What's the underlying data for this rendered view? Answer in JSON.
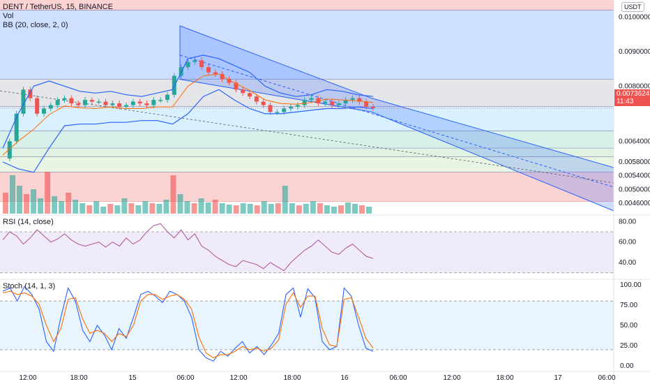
{
  "header": {
    "title": "DENT / TetherUS, 15, BINANCE",
    "vol_label": "Vol",
    "bb_label": "BB (20, close, 2, 0)",
    "unit": "USDT"
  },
  "price_tag": {
    "value": "0.0073624",
    "countdown": "11:43",
    "color": "#ef5350"
  },
  "rsi_label": "RSI (14, close)",
  "stoch_label": "Stoch (14, 1, 3)",
  "colors": {
    "up": "#26a69a",
    "down": "#ef5350",
    "bb": "#2962ff",
    "ma": "#ff6d00",
    "rsi": "#b05ca1",
    "stoch_k": "#2962ff",
    "stoch_d": "#ff6d00"
  },
  "chart_data": [
    {
      "type": "candlestick",
      "name": "price",
      "ylim": [
        0.0043,
        0.0105
      ],
      "y_ticks": [
        "0.0100000",
        "0.0090000",
        "0.0080000",
        "0.0064000",
        "0.0058000",
        "0.0054000",
        "0.0050000",
        "0.0046000"
      ],
      "y_tick_values": [
        0.01,
        0.009,
        0.008,
        0.0064,
        0.0058,
        0.0054,
        0.005,
        0.0046
      ],
      "last_price": 0.0073624,
      "x_ticks": [
        "12:00",
        "18:00",
        "15",
        "06:00",
        "12:00",
        "18:00",
        "16",
        "06:00",
        "12:00",
        "18:00",
        "17",
        "06:00"
      ],
      "fib_levels": [
        0.0102,
        0.0082,
        0.0074,
        0.0067,
        0.0062,
        0.00595,
        0.0055,
        0.00465
      ],
      "zone_colors": [
        "#fcd3d3",
        "#cfe0ff",
        "#e4e6ea",
        "#d9f0ff",
        "#d7f0ea",
        "#dff2e3",
        "#e9f5e4",
        "#fbd3d3"
      ],
      "price_path": [
        0.0059,
        0.0064,
        0.0072,
        0.0079,
        0.00765,
        0.0072,
        0.00735,
        0.00745,
        0.0076,
        0.00765,
        0.0075,
        0.00745,
        0.0076,
        0.00755,
        0.00755,
        0.00745,
        0.0075,
        0.0074,
        0.00745,
        0.00755,
        0.0075,
        0.00745,
        0.0076,
        0.0076,
        0.00775,
        0.0083,
        0.00855,
        0.0087,
        0.00875,
        0.00855,
        0.0084,
        0.00835,
        0.0082,
        0.0081,
        0.0079,
        0.0078,
        0.0077,
        0.00755,
        0.00745,
        0.00725,
        0.00725,
        0.00735,
        0.0074,
        0.00745,
        0.0076,
        0.00765,
        0.0075,
        0.00755,
        0.00745,
        0.0075,
        0.0076,
        0.00765,
        0.00755,
        0.0074,
        0.007362
      ],
      "bb_upper_path": [
        0.0062,
        0.0072,
        0.008,
        0.00815,
        0.008,
        0.00785,
        0.0078,
        0.00785,
        0.00775,
        0.0077,
        0.0078,
        0.0079,
        0.0088,
        0.0089,
        0.0088,
        0.0086,
        0.0084,
        0.008,
        0.0078,
        0.0077,
        0.00775,
        0.0079,
        0.00785,
        0.00775,
        0.0077
      ],
      "bb_lower_path": [
        0.0058,
        0.0056,
        0.0055,
        0.0062,
        0.00685,
        0.0069,
        0.0069,
        0.00695,
        0.00695,
        0.007,
        0.007,
        0.0069,
        0.0072,
        0.0077,
        0.0079,
        0.0076,
        0.00735,
        0.0072,
        0.0072,
        0.00725,
        0.0073,
        0.00735,
        0.00735,
        0.0074,
        0.00735
      ],
      "volume_path": [
        30,
        55,
        40,
        28,
        35,
        22,
        60,
        25,
        18,
        30,
        20,
        15,
        12,
        18,
        10,
        14,
        12,
        22,
        15,
        12,
        18,
        15,
        14,
        20,
        55,
        28,
        18,
        15,
        22,
        16,
        20,
        15,
        13,
        12,
        15,
        14,
        12,
        18,
        14,
        15,
        40,
        15,
        12,
        14,
        18,
        15,
        12,
        10,
        12,
        16,
        14,
        12,
        10
      ]
    },
    {
      "type": "line",
      "name": "RSI",
      "ylim": [
        25,
        85
      ],
      "y_ticks": [
        "80.00",
        "60.00",
        "40.00"
      ],
      "y_tick_values": [
        80,
        60,
        40
      ],
      "bands": [
        70,
        30
      ],
      "values": [
        62,
        70,
        66,
        58,
        64,
        72,
        66,
        60,
        63,
        68,
        62,
        58,
        56,
        58,
        60,
        55,
        60,
        56,
        64,
        58,
        62,
        70,
        76,
        78,
        70,
        64,
        72,
        62,
        68,
        56,
        52,
        46,
        42,
        38,
        36,
        42,
        40,
        38,
        34,
        40,
        36,
        32,
        40,
        46,
        52,
        56,
        62,
        56,
        50,
        48,
        54,
        58,
        52,
        46,
        44
      ]
    },
    {
      "type": "line",
      "name": "Stoch",
      "ylim": [
        -5,
        105
      ],
      "y_ticks": [
        "100.00",
        "75.00",
        "50.00",
        "25.00",
        "0.00"
      ],
      "y_tick_values": [
        100,
        75,
        50,
        25,
        0
      ],
      "bands": [
        80,
        20
      ],
      "k": [
        92,
        96,
        80,
        98,
        88,
        70,
        30,
        18,
        60,
        96,
        80,
        44,
        30,
        50,
        38,
        20,
        46,
        34,
        60,
        88,
        92,
        86,
        78,
        92,
        88,
        80,
        60,
        20,
        10,
        6,
        18,
        12,
        22,
        30,
        16,
        24,
        14,
        26,
        40,
        88,
        96,
        60,
        95,
        84,
        30,
        20,
        24,
        96,
        86,
        50,
        22,
        18
      ],
      "d": [
        90,
        92,
        88,
        90,
        86,
        76,
        50,
        30,
        46,
        82,
        84,
        58,
        40,
        44,
        40,
        30,
        40,
        36,
        50,
        80,
        88,
        88,
        82,
        86,
        88,
        82,
        70,
        36,
        16,
        10,
        14,
        14,
        18,
        24,
        20,
        22,
        18,
        22,
        32,
        76,
        90,
        72,
        86,
        86,
        46,
        26,
        24,
        82,
        84,
        60,
        34,
        22
      ]
    }
  ]
}
